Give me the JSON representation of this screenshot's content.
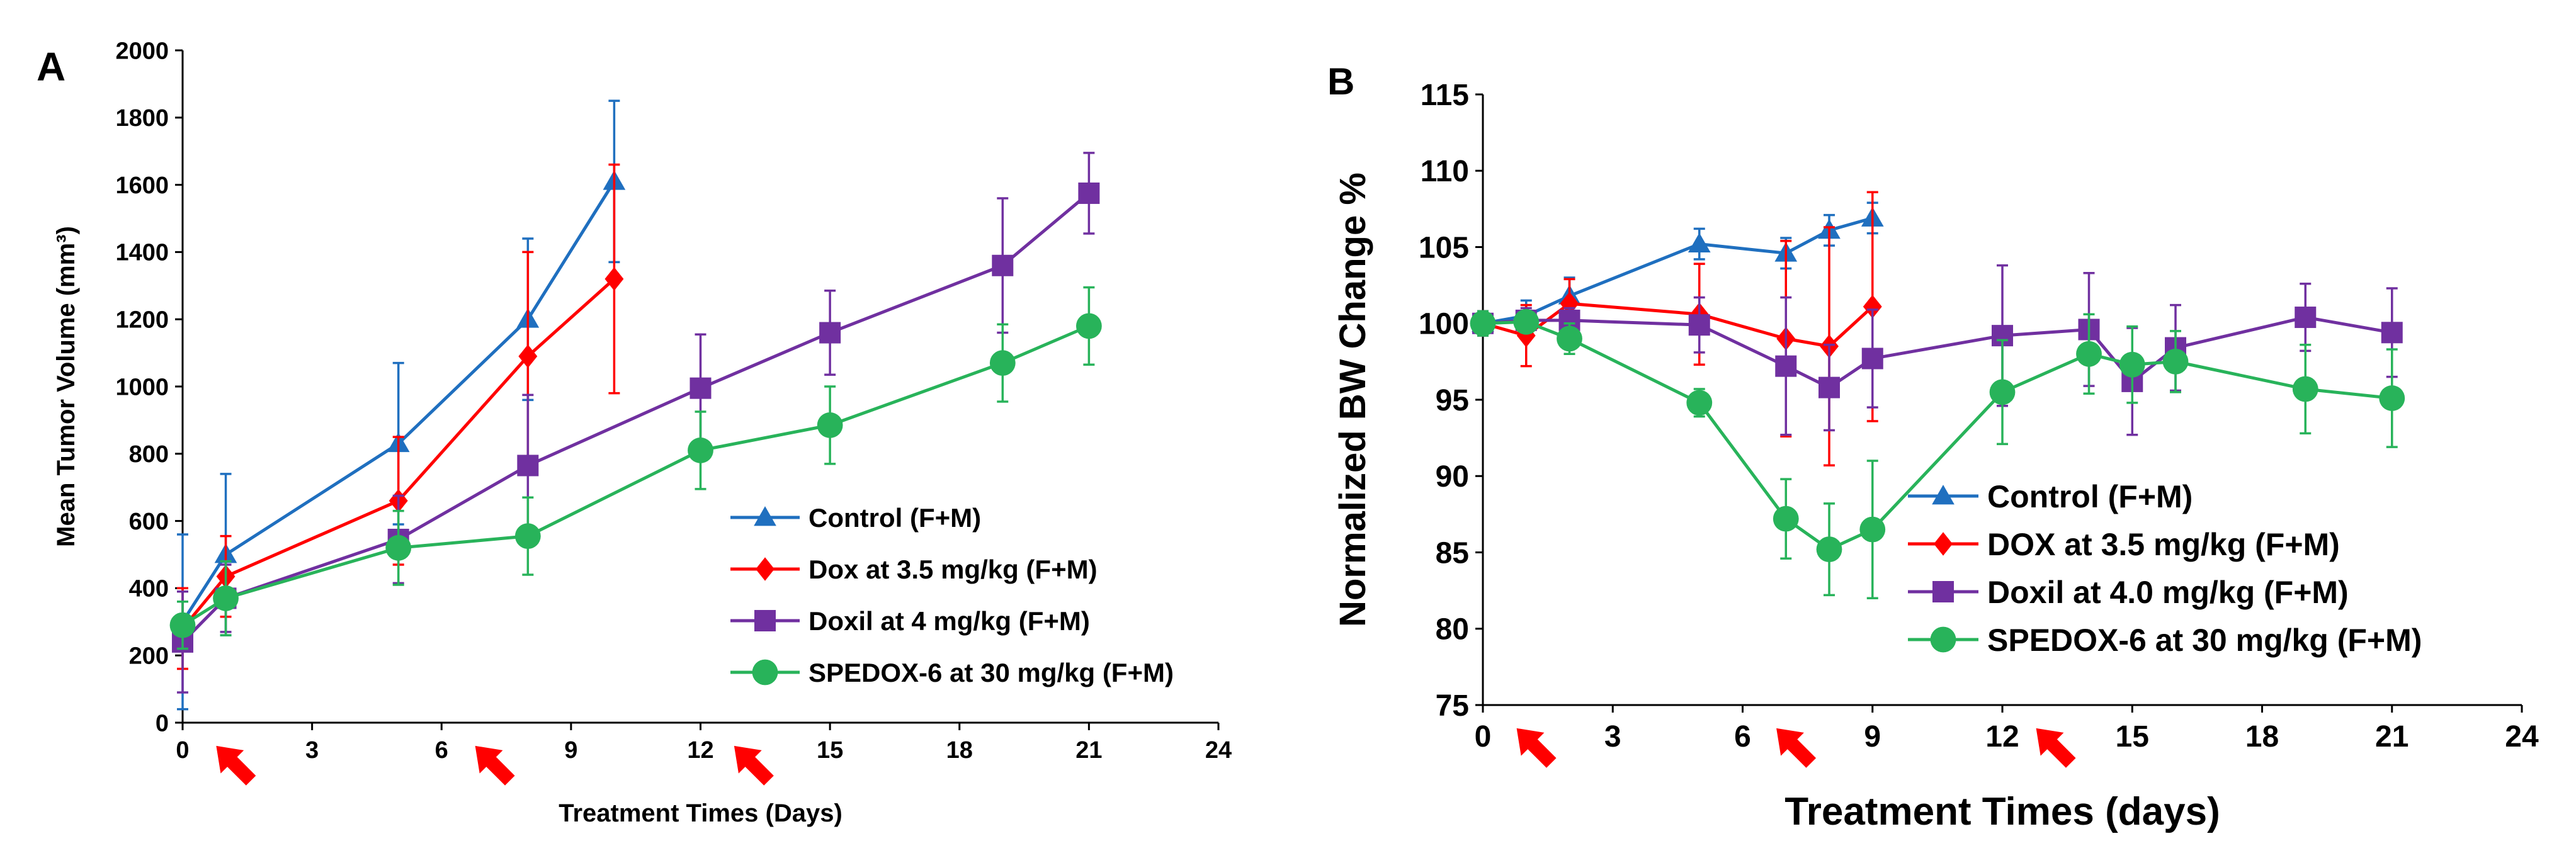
{
  "colors": {
    "control": "#1f6fbf",
    "dox": "#ff0000",
    "doxil": "#7030a0",
    "spedox": "#28b35a",
    "arrow": "#ff0000",
    "axis": "#000000"
  },
  "chart_data": [
    {
      "id": "A",
      "panel_label": "A",
      "type": "line",
      "title": "",
      "xlabel": "Treatment Times (Days)",
      "ylabel": "Mean Tumor Volume (mm³)",
      "xlim": [
        0,
        24
      ],
      "ylim": [
        0,
        2000
      ],
      "xticks": [
        0,
        3,
        6,
        9,
        12,
        15,
        18,
        21,
        24
      ],
      "yticks": [
        0,
        200,
        400,
        600,
        800,
        1000,
        1200,
        1400,
        1600,
        1800,
        2000
      ],
      "grid": false,
      "legend_position": "bottom-right",
      "treatment_arrows_at_days": [
        1,
        7,
        13
      ],
      "series": [
        {
          "name": "Control (F+M)",
          "key": "control",
          "marker": "triangle",
          "x": [
            0,
            1,
            5,
            8,
            10
          ],
          "y": [
            300,
            500,
            830,
            1200,
            1610
          ],
          "err": [
            260,
            240,
            240,
            240,
            240
          ]
        },
        {
          "name": "Dox at 3.5 mg/kg (F+M)",
          "key": "dox",
          "marker": "diamond",
          "x": [
            0,
            1,
            5,
            8,
            10
          ],
          "y": [
            280,
            435,
            660,
            1090,
            1320
          ],
          "err": [
            120,
            120,
            190,
            310,
            340
          ]
        },
        {
          "name": "Doxil at 4 mg/kg (F+M)",
          "key": "doxil",
          "marker": "square",
          "x": [
            0,
            1,
            5,
            8,
            12,
            15,
            19,
            21
          ],
          "y": [
            240,
            370,
            545,
            765,
            995,
            1160,
            1360,
            1575
          ],
          "err": [
            150,
            100,
            130,
            210,
            160,
            125,
            200,
            120
          ]
        },
        {
          "name": "SPEDOX-6 at 30 mg/kg (F+M)",
          "key": "spedox",
          "marker": "circle",
          "x": [
            0,
            1,
            5,
            8,
            12,
            15,
            19,
            21
          ],
          "y": [
            290,
            370,
            520,
            555,
            810,
            885,
            1070,
            1180
          ],
          "err": [
            70,
            110,
            110,
            115,
            115,
            115,
            115,
            115
          ]
        }
      ]
    },
    {
      "id": "B",
      "panel_label": "B",
      "type": "line",
      "title": "",
      "xlabel": "Treatment Times (days)",
      "ylabel": "Normalized BW Change %",
      "xlim": [
        0,
        24
      ],
      "ylim": [
        75,
        115
      ],
      "xticks": [
        0,
        3,
        6,
        9,
        12,
        15,
        18,
        21,
        24
      ],
      "yticks": [
        75,
        80,
        85,
        90,
        95,
        100,
        105,
        110,
        115
      ],
      "grid": false,
      "legend_position": "bottom-left",
      "treatment_arrows_at_days": [
        1,
        7,
        13
      ],
      "series": [
        {
          "name": "Control (F+M)",
          "key": "control",
          "marker": "triangle",
          "x": [
            0,
            1,
            2,
            5,
            7,
            8,
            9
          ],
          "y": [
            100,
            100.5,
            101.8,
            105.2,
            104.6,
            106.1,
            106.9
          ],
          "err": [
            0.8,
            1.0,
            1.2,
            1.0,
            1.0,
            1.0,
            1.0
          ]
        },
        {
          "name": "DOX at 3.5 mg/kg (F+M)",
          "key": "dox",
          "marker": "diamond",
          "x": [
            0,
            1,
            2,
            5,
            7,
            8,
            9
          ],
          "y": [
            100,
            99.2,
            101.3,
            100.6,
            99.0,
            98.5,
            101.1
          ],
          "err": [
            0.8,
            2.0,
            1.6,
            3.3,
            6.4,
            7.8,
            7.5
          ]
        },
        {
          "name": "Doxil at 4.0 mg/kg (F+M)",
          "key": "doxil",
          "marker": "square",
          "x": [
            0,
            1,
            2,
            5,
            7,
            8,
            9,
            12,
            14,
            15,
            16,
            19,
            21
          ],
          "y": [
            100,
            100.2,
            100.2,
            99.9,
            97.2,
            95.8,
            97.7,
            99.2,
            99.6,
            96.2,
            98.4,
            100.4,
            99.4
          ],
          "err": [
            0.8,
            0.8,
            0.8,
            1.8,
            4.5,
            2.8,
            3.2,
            4.6,
            3.7,
            3.5,
            2.8,
            2.2,
            2.9
          ]
        },
        {
          "name": "SPEDOX-6 at 30 mg/kg (F+M)",
          "key": "spedox",
          "marker": "circle",
          "x": [
            0,
            1,
            2,
            5,
            7,
            8,
            9,
            12,
            14,
            15,
            16,
            19,
            21
          ],
          "y": [
            100,
            100.1,
            99.0,
            94.8,
            87.2,
            85.2,
            86.5,
            95.5,
            98.0,
            97.3,
            97.5,
            95.7,
            95.1
          ],
          "err": [
            0.8,
            0.6,
            1.0,
            0.9,
            2.6,
            3.0,
            4.5,
            3.4,
            2.6,
            2.5,
            2.0,
            2.9,
            3.2
          ]
        }
      ]
    }
  ]
}
